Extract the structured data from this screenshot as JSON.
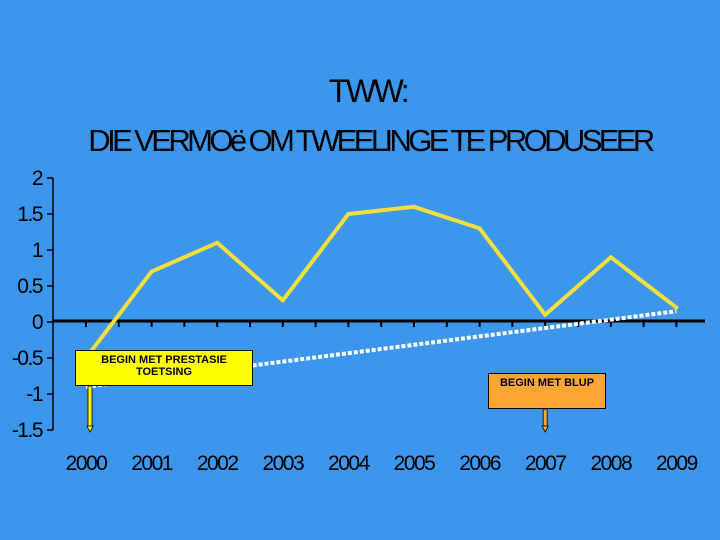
{
  "chart_data": {
    "type": "line",
    "title": "TWW:",
    "subtitle": "DIE VERMOë OM TWEELINGE TE PRODUSEER",
    "xlabel": "",
    "ylabel": "",
    "x": [
      "2000",
      "2001",
      "2002",
      "2003",
      "2004",
      "2005",
      "2006",
      "2007",
      "2008",
      "2009"
    ],
    "series": [
      {
        "values": [
          -0.5,
          0.7,
          1.1,
          0.3,
          1.5,
          1.6,
          1.3,
          0.1,
          0.9,
          0.2
        ],
        "color": "#f2de3c"
      }
    ],
    "trendline": {
      "x": [
        "2000",
        "2009"
      ],
      "values": [
        -0.9,
        0.15
      ],
      "color": "#ffffff",
      "style": "dotted"
    },
    "ylim": [
      -1.5,
      2
    ],
    "yticks": [
      "2",
      "1.5",
      "1",
      "0.5",
      "0",
      "-0.5",
      "-1",
      "-1.5"
    ],
    "grid": false,
    "annotations": [
      {
        "text": "BEGIN MET PRESTASIE TOETSING",
        "x": "2000",
        "color": "#ffff00"
      },
      {
        "text": "BEGIN MET BLUP",
        "x": "2007",
        "color": "#ffa531"
      }
    ]
  }
}
